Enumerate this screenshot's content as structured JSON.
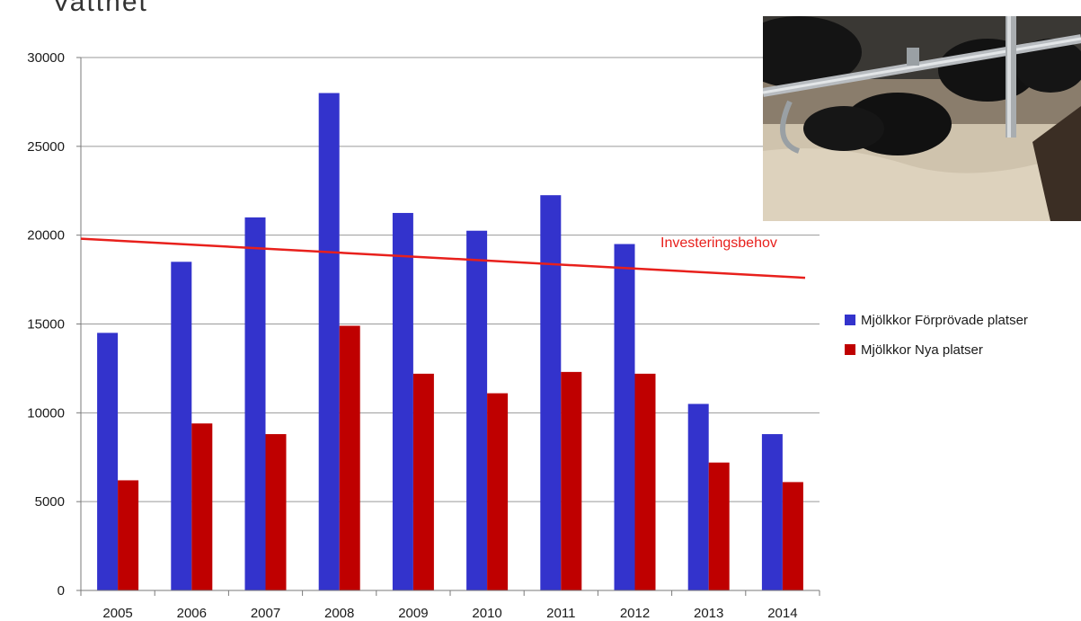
{
  "slide": {
    "title_fragment": "Vattnet"
  },
  "photo": {
    "subject": "cows-in-stalls-photo"
  },
  "chart_data": {
    "type": "bar",
    "categories": [
      "2005",
      "2006",
      "2007",
      "2008",
      "2009",
      "2010",
      "2011",
      "2012",
      "2013",
      "2014"
    ],
    "series": [
      {
        "name": "Mjölkkor Förprövade platser",
        "color": "#3333cc",
        "values": [
          14500,
          18500,
          21000,
          28000,
          21250,
          20250,
          22250,
          19500,
          10500,
          8800
        ]
      },
      {
        "name": "Mjölkkor Nya platser",
        "color": "#bf0000",
        "values": [
          6200,
          9400,
          8800,
          14900,
          12200,
          11100,
          12300,
          12200,
          7200,
          6100
        ]
      }
    ],
    "ylim": [
      0,
      30000
    ],
    "yticks": [
      0,
      5000,
      10000,
      15000,
      20000,
      25000,
      30000
    ],
    "grid": true,
    "legend_position": "right",
    "trendline": {
      "label": "Investeringsbehov",
      "color": "#e8201c",
      "start_value": 19800,
      "end_value": 17600
    }
  }
}
